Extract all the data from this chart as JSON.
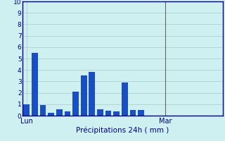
{
  "bar_color": "#1a4fc4",
  "bg_color": "#cff0f0",
  "grid_color": "#aacaca",
  "axis_color": "#00008b",
  "text_color": "#00008b",
  "ylim": [
    0,
    10
  ],
  "yticks": [
    0,
    1,
    2,
    3,
    4,
    5,
    6,
    7,
    8,
    9,
    10
  ],
  "xlabel": "Précipitations 24h ( mm )",
  "day_labels": [
    "Lun",
    "Mar"
  ],
  "bar_values": [
    1.0,
    5.5,
    0.9,
    0.25,
    0.55,
    0.4,
    2.1,
    3.5,
    3.8,
    0.55,
    0.45,
    0.4,
    2.9,
    0.5,
    0.5
  ],
  "bar_positions": [
    0,
    1,
    2,
    3,
    4,
    5,
    6,
    7,
    8,
    9,
    10,
    11,
    12,
    13,
    14
  ],
  "xlim": [
    -0.5,
    24
  ],
  "lun_x": 0,
  "mar_x": 17,
  "vline_x": 17
}
